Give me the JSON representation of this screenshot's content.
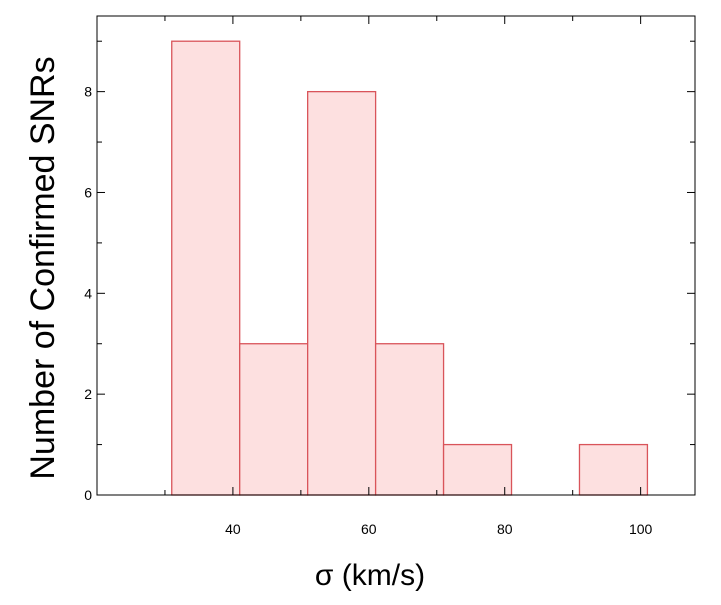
{
  "chart_data": {
    "type": "bar",
    "title": "",
    "xlabel": "σ (km/s)",
    "ylabel": "Number of Confirmed SNRs",
    "xlim": [
      20,
      108
    ],
    "ylim": [
      0,
      9.5
    ],
    "bins": [
      {
        "x0": 31,
        "x1": 41,
        "count": 9
      },
      {
        "x0": 41,
        "x1": 51,
        "count": 3
      },
      {
        "x0": 51,
        "x1": 61,
        "count": 8
      },
      {
        "x0": 61,
        "x1": 71,
        "count": 3
      },
      {
        "x0": 71,
        "x1": 81,
        "count": 1
      },
      {
        "x0": 81,
        "x1": 91,
        "count": 0
      },
      {
        "x0": 91,
        "x1": 101,
        "count": 1
      }
    ],
    "x_major_ticks": [
      40,
      60,
      80,
      100
    ],
    "x_minor_ticks": [
      30,
      50,
      70,
      90
    ],
    "y_major_ticks": [
      0,
      2,
      4,
      6,
      8
    ],
    "y_minor_ticks": [
      1,
      3,
      5,
      7,
      9
    ],
    "x_tick_labels": [
      "40",
      "60",
      "80",
      "100"
    ],
    "y_tick_labels": [
      "0",
      "2",
      "4",
      "6",
      "8"
    ],
    "bar_fill": "#fde0e0",
    "bar_stroke": "#d9545a",
    "axis_color": "#000000",
    "grid": false,
    "legend": false
  }
}
